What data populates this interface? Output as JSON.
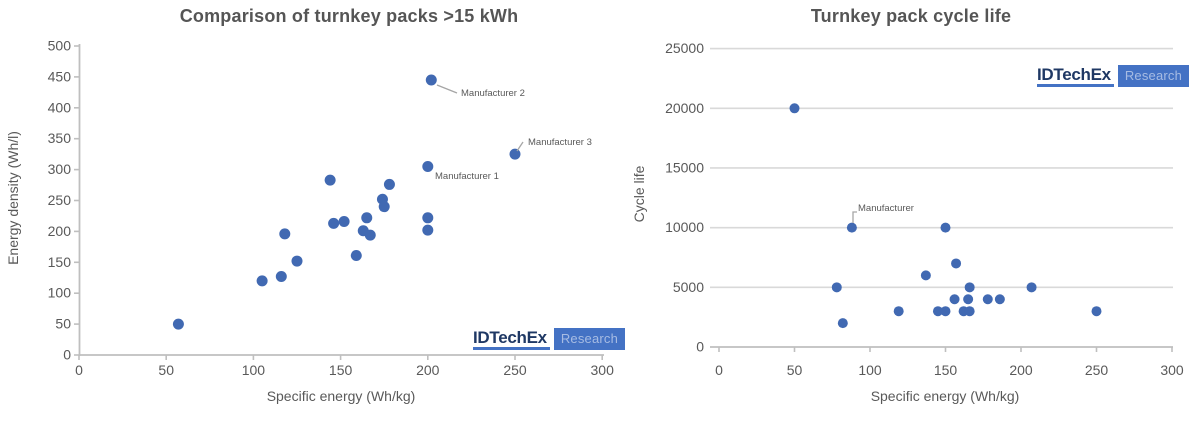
{
  "page": {
    "background": "#FFFFFF"
  },
  "branding": {
    "logo_text": "IDTechEx",
    "logo_badge": "Research",
    "logo_text_color": "#1F3864",
    "logo_accent": "#4472C4",
    "logo_badge_text_color": "#A7BCE3"
  },
  "colors": {
    "point": "#4169B2",
    "grid": "#D9D9D9",
    "axis": "#BFBFBF",
    "tick_text": "#595959",
    "title_text": "#555555",
    "leader": "#A6A6A6"
  },
  "chart_data": [
    {
      "type": "scatter",
      "title": "Comparison of turnkey packs >15 kWh",
      "xlabel": "Specific energy (Wh/kg)",
      "ylabel": "Energy density (Wh/l)",
      "xlim": [
        0,
        300
      ],
      "ylim": [
        0,
        500
      ],
      "xticks": [
        0,
        50,
        100,
        150,
        200,
        250,
        300
      ],
      "yticks": [
        0,
        50,
        100,
        150,
        200,
        250,
        300,
        350,
        400,
        450,
        500
      ],
      "grid": false,
      "legend": "none",
      "points": [
        [
          57,
          50
        ],
        [
          105,
          120
        ],
        [
          116,
          127
        ],
        [
          118,
          196
        ],
        [
          125,
          152
        ],
        [
          144,
          283
        ],
        [
          146,
          213
        ],
        [
          152,
          216
        ],
        [
          159,
          161
        ],
        [
          163,
          201
        ],
        [
          165,
          222
        ],
        [
          167,
          194
        ],
        [
          174,
          252
        ],
        [
          175,
          240
        ],
        [
          178,
          276
        ],
        [
          200,
          202
        ],
        [
          200,
          222
        ],
        [
          200,
          305
        ],
        [
          202,
          445
        ],
        [
          250,
          325
        ]
      ],
      "annotations": [
        {
          "label": "Manufacturer 2",
          "x": 202,
          "y": 445
        },
        {
          "label": "Manufacturer 3",
          "x": 250,
          "y": 325
        },
        {
          "label": "Manufacturer 1",
          "x": 200,
          "y": 305
        }
      ]
    },
    {
      "type": "scatter",
      "title": "Turnkey pack cycle life",
      "xlabel": "Specific energy (Wh/kg)",
      "ylabel": "Cycle life",
      "xlim": [
        0,
        300
      ],
      "ylim": [
        0,
        25000
      ],
      "xticks": [
        0,
        50,
        100,
        150,
        200,
        250,
        300
      ],
      "yticks": [
        0,
        5000,
        10000,
        15000,
        20000,
        25000
      ],
      "grid": true,
      "legend": "none",
      "points": [
        [
          50,
          20000
        ],
        [
          88,
          10000
        ],
        [
          150,
          10000
        ],
        [
          157,
          7000
        ],
        [
          137,
          6000
        ],
        [
          78,
          5000
        ],
        [
          166,
          5000
        ],
        [
          207,
          5000
        ],
        [
          156,
          4000
        ],
        [
          165,
          4000
        ],
        [
          178,
          4000
        ],
        [
          186,
          4000
        ],
        [
          119,
          3000
        ],
        [
          145,
          3000
        ],
        [
          150,
          3000
        ],
        [
          162,
          3000
        ],
        [
          166,
          3000
        ],
        [
          250,
          3000
        ],
        [
          82,
          2000
        ]
      ],
      "annotations": [
        {
          "label": "Manufacturer",
          "x": 88,
          "y": 10000
        }
      ]
    }
  ]
}
